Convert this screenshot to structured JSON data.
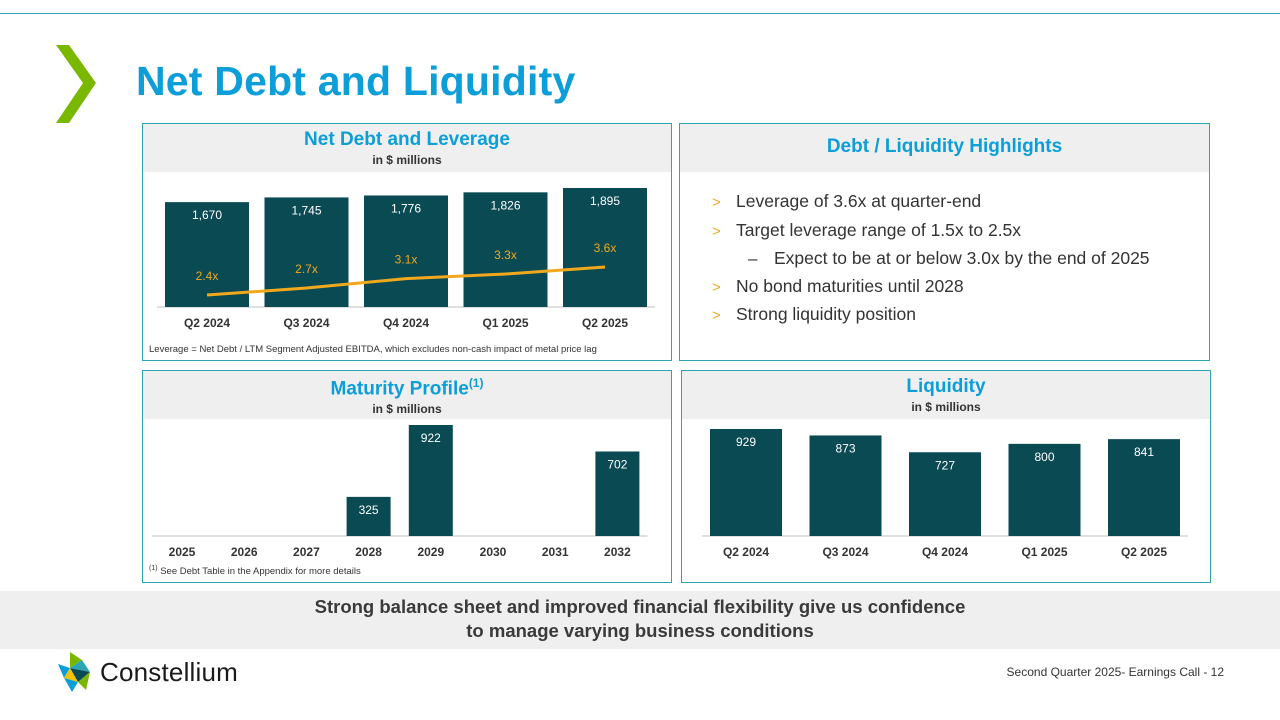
{
  "page": {
    "title": "Net Debt and Liquidity"
  },
  "net_debt_panel": {
    "title": "Net Debt and Leverage",
    "subtitle": "in $ millions",
    "note": "Leverage = Net Debt / LTM Segment Adjusted EBITDA, which excludes non-cash impact of metal price lag"
  },
  "highlights_panel": {
    "title": "Debt / Liquidity Highlights",
    "items": [
      {
        "marker": ">",
        "text": "Leverage of 3.6x at quarter-end"
      },
      {
        "marker": ">",
        "text": "Target leverage range of 1.5x to 2.5x"
      },
      {
        "marker": "–",
        "text": "Expect to be at or below 3.0x by the end of 2025"
      },
      {
        "marker": ">",
        "text": "No bond maturities until 2028"
      },
      {
        "marker": ">",
        "text": "Strong liquidity position"
      }
    ]
  },
  "maturity_panel": {
    "title": "Maturity Profile",
    "title_sup": "(1)",
    "subtitle": "in $ millions",
    "note_sup": "(1)",
    "note": "See Debt Table in the Appendix for more details"
  },
  "liquidity_panel": {
    "title": "Liquidity",
    "subtitle": "in $ millions"
  },
  "banner": {
    "line1": "Strong balance sheet and improved financial flexibility give us confidence",
    "line2": "to manage varying business conditions"
  },
  "footer": {
    "brand": "Constellium",
    "text": "Second Quarter 2025- Earnings Call - 12"
  },
  "colors": {
    "accent": "#0b9ed9",
    "bar": "#0a4a53",
    "leverage_line": "#f2a81d",
    "border": "#2aa6b7",
    "chevron": "#7ab800"
  },
  "chart_data": [
    {
      "id": "net_debt",
      "type": "bar",
      "title": "Net Debt and Leverage",
      "categories": [
        "Q2 2024",
        "Q3 2024",
        "Q4 2024",
        "Q1 2025",
        "Q2 2025"
      ],
      "series": [
        {
          "name": "Net Debt",
          "values": [
            1670,
            1745,
            1776,
            1826,
            1895
          ],
          "labels": [
            "1,670",
            "1,745",
            "1,776",
            "1,826",
            "1,895"
          ]
        },
        {
          "name": "Leverage",
          "type": "line",
          "values": [
            2.4,
            2.7,
            3.1,
            3.3,
            3.6
          ],
          "labels": [
            "2.4x",
            "2.7x",
            "3.1x",
            "3.3x",
            "3.6x"
          ]
        }
      ]
    },
    {
      "id": "maturity",
      "type": "bar",
      "title": "Maturity Profile",
      "categories": [
        "2025",
        "2026",
        "2027",
        "2028",
        "2029",
        "2030",
        "2031",
        "2032"
      ],
      "values": [
        0,
        0,
        0,
        325,
        922,
        0,
        0,
        702
      ],
      "labels": [
        "",
        "",
        "",
        "325",
        "922",
        "",
        "",
        "702"
      ]
    },
    {
      "id": "liquidity",
      "type": "bar",
      "title": "Liquidity",
      "categories": [
        "Q2 2024",
        "Q3 2024",
        "Q4 2024",
        "Q1 2025",
        "Q2 2025"
      ],
      "values": [
        929,
        873,
        727,
        800,
        841
      ],
      "labels": [
        "929",
        "873",
        "727",
        "800",
        "841"
      ]
    }
  ]
}
